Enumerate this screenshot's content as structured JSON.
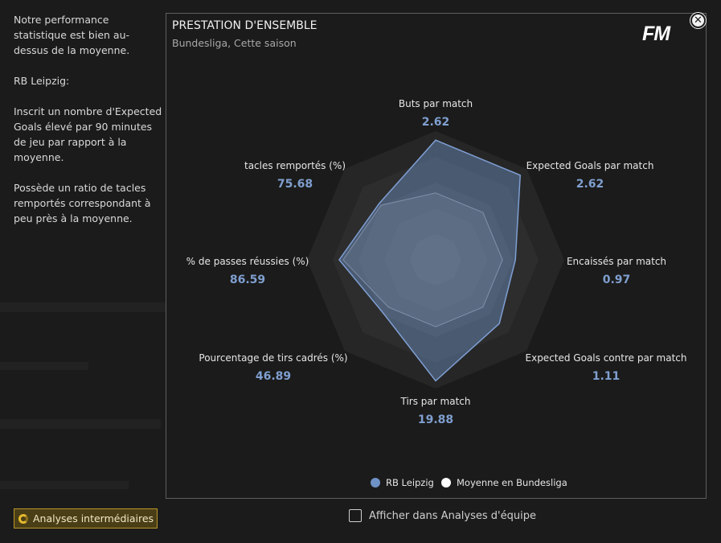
{
  "sidebar": {
    "para1": "Notre performance statistique est bien au-dessus de la moyenne.",
    "para2": "RB Leipzig:",
    "para3": "Inscrit un nombre d'Expected Goals élevé par 90 minutes de jeu par rapport à la moyenne.",
    "para4": "Possède un ratio de tacles remportés correspondant à peu près à la moyenne."
  },
  "panel": {
    "title": "PRESTATION D'ENSEMBLE",
    "subtitle": "Bundesliga, Cette saison",
    "logo": "FM",
    "close_icon": "close-icon"
  },
  "chart_data": {
    "type": "radar",
    "axes": [
      {
        "label": "Buts par match",
        "value_text": "2.62"
      },
      {
        "label": "Expected Goals par match",
        "value_text": "2.62"
      },
      {
        "label": "Encaissés par match",
        "value_text": "0.97"
      },
      {
        "label": "Expected Goals contre par match",
        "value_text": "1.11"
      },
      {
        "label": "Tirs par match",
        "value_text": "19.88"
      },
      {
        "label": "Pourcentage de tirs cadrés (%)",
        "value_text": "46.89"
      },
      {
        "label": "% de passes réussies (%)",
        "value_text": "86.59"
      },
      {
        "label": "tacles remportés (%)",
        "value_text": "75.68"
      }
    ],
    "series": [
      {
        "name": "RB Leipzig",
        "color": "#6f92c6",
        "values": [
          0.93,
          0.93,
          0.62,
          0.7,
          0.94,
          0.58,
          0.75,
          0.62
        ]
      },
      {
        "name": "Moyenne en Bundesliga",
        "color": "#ffffff",
        "values": [
          0.52,
          0.52,
          0.52,
          0.52,
          0.52,
          0.52,
          0.72,
          0.6
        ]
      }
    ],
    "rings": 5
  },
  "legend": {
    "team": "RB Leipzig",
    "average": "Moyenne en Bundesliga"
  },
  "footer": {
    "button_label": "Analyses intermédiaires",
    "checkbox_label": "Afficher dans Analyses d'équipe"
  },
  "colors": {
    "team": "#6f92c6",
    "average": "#ffffff",
    "accent": "#e5b92e"
  }
}
